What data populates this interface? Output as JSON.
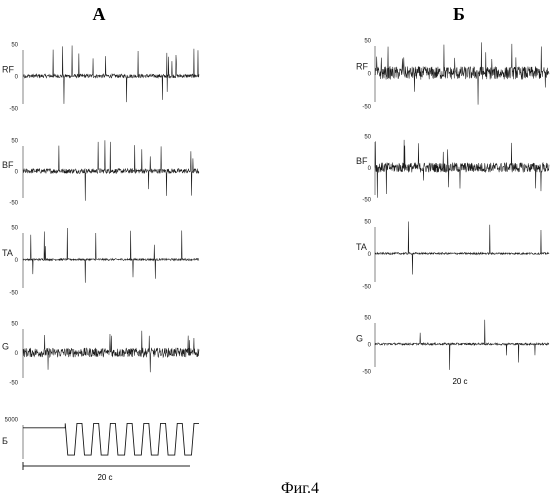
{
  "panels": {
    "left": {
      "title": "А"
    },
    "right": {
      "title": "Б"
    }
  },
  "scale_bars": {
    "left_label": "20 с",
    "right_label": "20 с"
  },
  "caption": "Фиг.4",
  "chart_data": [
    {
      "type": "line",
      "panel": "А",
      "series": [
        {
          "name": "RF",
          "ylim": [
            -50,
            50
          ],
          "ticks": [
            "50",
            "0",
            "-50"
          ],
          "noise_amplitude": 3,
          "spike_count": 18
        },
        {
          "name": "BF",
          "ylim": [
            -50,
            50
          ],
          "ticks": [
            "50",
            "0",
            "-50"
          ],
          "noise_amplitude": 4,
          "spike_count": 14
        },
        {
          "name": "TA",
          "ylim": [
            -50,
            50
          ],
          "ticks": [
            "50",
            "0",
            "-50"
          ],
          "noise_amplitude": 1.5,
          "spike_count": 12
        },
        {
          "name": "G",
          "ylim": [
            -50,
            50
          ],
          "ticks": [
            "50",
            "0",
            "-50"
          ],
          "noise_amplitude": 8,
          "spike_count": 10
        },
        {
          "name": "Б",
          "ylim": [
            0,
            5000
          ],
          "ticks": [
            "5000"
          ],
          "baseline": 4000,
          "square_wave": {
            "high": 4500,
            "low": 900,
            "cycles": 8
          }
        }
      ]
    },
    {
      "type": "line",
      "panel": "Б",
      "series": [
        {
          "name": "RF",
          "ylim": [
            -50,
            50
          ],
          "ticks": [
            "50",
            "0",
            "-50"
          ],
          "noise_amplitude": 10,
          "spike_count": 16
        },
        {
          "name": "BF",
          "ylim": [
            -50,
            50
          ],
          "ticks": [
            "50",
            "0",
            "-50"
          ],
          "noise_amplitude": 8,
          "spike_count": 14
        },
        {
          "name": "TA",
          "ylim": [
            -50,
            50
          ],
          "ticks": [
            "50",
            "0",
            "-50"
          ],
          "noise_amplitude": 1.5,
          "spike_count": 4
        },
        {
          "name": "G",
          "ylim": [
            -50,
            50
          ],
          "ticks": [
            "50",
            "0",
            "-50"
          ],
          "noise_amplitude": 2,
          "spike_count": 6
        }
      ]
    }
  ]
}
